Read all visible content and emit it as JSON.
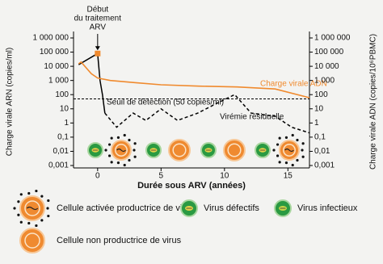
{
  "chart_data": {
    "type": "line",
    "ylabel": "Charge virale ARN (copies/ml)",
    "y2label": "Charge virale ADN (copies/10⁶PBMC)",
    "xlabel": "Durée sous ARV (années)",
    "xlim": [
      -1.9,
      16.7
    ],
    "xticks": [
      0,
      5,
      10,
      15
    ],
    "ylim": [
      0.001,
      1000000
    ],
    "y2lim": [
      0.001,
      1000000
    ],
    "log_scale": true,
    "yticks": [
      {
        "value": 1000000,
        "label": "1 000 000"
      },
      {
        "value": 100000,
        "label": "100 000"
      },
      {
        "value": 10000,
        "label": "10 000"
      },
      {
        "value": 1000,
        "label": "1 000"
      },
      100,
      10,
      1,
      {
        "value": 0.1,
        "label": "0,1"
      },
      {
        "value": 0.01,
        "label": "0,01"
      },
      {
        "value": 0.001,
        "label": "0,001"
      }
    ],
    "y2ticks": [
      {
        "value": 1000000,
        "label": "1 000 000"
      },
      {
        "value": 100000,
        "label": "100 000"
      },
      {
        "value": 10000,
        "label": "10 000"
      },
      {
        "value": 1000,
        "label": "1 000"
      },
      100,
      10,
      1,
      {
        "value": 0.1,
        "label": "0,1"
      },
      {
        "value": 0.01,
        "label": "0,01"
      },
      {
        "value": 0.001,
        "label": "0,001"
      }
    ],
    "series": [
      {
        "color": "#000000",
        "line_style": "solid",
        "x": [
          -1.5,
          0,
          0.19,
          0.38,
          0.57
        ],
        "values": [
          13000,
          80000,
          1000,
          100,
          5
        ]
      },
      {
        "color": "#000000",
        "line_style": "dashed",
        "x": [
          0.57,
          1.5,
          2.8,
          3.8,
          5,
          6.3,
          7.9,
          9.2,
          10.8,
          12.1,
          14,
          15.3,
          16.7
        ],
        "values": [
          5,
          0.5,
          5,
          1.5,
          10,
          1.5,
          5,
          20,
          100,
          5,
          3,
          0.5,
          0.2
        ]
      },
      {
        "color": "#f08a2e",
        "line_style": "solid",
        "axis": "y2",
        "x": [
          -1.5,
          -1.3,
          -0.5,
          0,
          1,
          3,
          5,
          8,
          11,
          14,
          16.7
        ],
        "values": [
          15000,
          20000,
          3000,
          1500,
          1000,
          700,
          500,
          400,
          350,
          250,
          60
        ]
      }
    ],
    "marker": {
      "x": 0,
      "y": 80000,
      "color": "#f08a2e"
    },
    "threshold": {
      "value": 50,
      "label": "Seuil de détection (50 copies/ml)"
    },
    "annotations": {
      "treatment_start": [
        "Début",
        "du traitement",
        "ARV"
      ],
      "dna_label": "Charge virale ADN",
      "residual": "Virémie résiduelle"
    },
    "legend_items": [
      "Cellule activée productrice de virus",
      "Virus défectifs",
      "Virus infectieux",
      "Cellule non productrice de virus"
    ]
  }
}
